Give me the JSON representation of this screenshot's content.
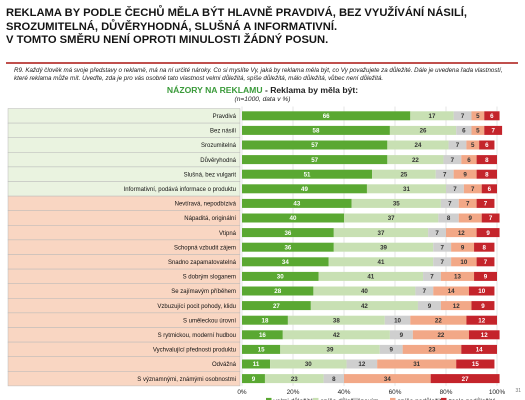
{
  "title_lines": [
    "REKLAMA BY PODLE ČECHŮ MĚLA BÝT HLAVNĚ PRAVDIVÁ, BEZ VYUŽÍVÁNÍ NÁSILÍ,",
    "SROZUMITELNÁ, DŮVĚRYHODNÁ, SLUŠNÁ A INFORMATIVNÍ.",
    "V TOMTO SMĚRU NENÍ OPROTI MINULOSTI ŽÁDNÝ POSUN."
  ],
  "question": "R9. Každý člověk má svoje představy o reklamě, má na ní určité nároky. Co si myslíte Vy, jaká by reklama měla být, co Vy považujete za důležité. Dále je uvedena řada vlastností, které reklama může mít. Uveďte, zda je pro vás osobně tato vlastnost velmi důležitá, spíše důležitá, málo důležitá, vůbec není důležitá.",
  "subtitle_accent": "NÁZORY NA REKLAMU",
  "subtitle_rest": " - Reklama by měla být:",
  "subtitle_note": "(n=1000, data v %)",
  "page_number": "31",
  "colors": {
    "very": "#5aa832",
    "rather": "#c8e0b3",
    "dunno": "#cfcfcf",
    "rather_not": "#f2a887",
    "not": "#c4242b",
    "label_green": "#eaf3e0",
    "label_orange": "#f9d6c2",
    "label_border": "#b9b9b9"
  },
  "chart_data": {
    "type": "bar",
    "orientation": "horizontal",
    "stacked": true,
    "xlim": [
      0,
      100
    ],
    "x_ticks": [
      "0%",
      "20%",
      "40%",
      "60%",
      "80%",
      "100%"
    ],
    "categories": [
      "Pravdivá",
      "Bez násilí",
      "Srozumitelná",
      "Důvěryhodná",
      "Slušná, bez vulgarit",
      "Informativní, podává informace o produktu",
      "Nevtíravá, nepodbízivá",
      "Nápaditá, originální",
      "Vtipná",
      "Schopná vzbudit zájem",
      "Snadno zapamatovatelná",
      "S dobrým sloganem",
      "Se zajímavým příběhem",
      "Vzbuzující pocit pohody, klidu",
      "S uměleckou úrovní",
      "S rytmickou, moderní hudbou",
      "Vychvalující přednosti produktu",
      "Odvážná",
      "S významnými, známými osobnostmi"
    ],
    "label_group": [
      "green",
      "green",
      "green",
      "green",
      "green",
      "green",
      "orange",
      "orange",
      "orange",
      "orange",
      "orange",
      "orange",
      "orange",
      "orange",
      "orange",
      "orange",
      "orange",
      "orange",
      "orange"
    ],
    "series": [
      {
        "name": "velmi důležitá",
        "values": [
          66,
          58,
          57,
          57,
          51,
          49,
          43,
          40,
          36,
          36,
          34,
          30,
          28,
          27,
          18,
          16,
          15,
          11,
          9
        ]
      },
      {
        "name": "spíše důležitá",
        "values": [
          17,
          26,
          24,
          22,
          25,
          31,
          35,
          37,
          37,
          39,
          41,
          41,
          40,
          42,
          38,
          42,
          39,
          30,
          23
        ]
      },
      {
        "name": "nevím",
        "values": [
          7,
          6,
          7,
          7,
          7,
          7,
          7,
          8,
          7,
          7,
          7,
          7,
          7,
          9,
          10,
          9,
          9,
          12,
          8
        ]
      },
      {
        "name": "spíše nedůležitá",
        "values": [
          5,
          5,
          5,
          6,
          9,
          7,
          7,
          9,
          12,
          9,
          10,
          13,
          14,
          12,
          22,
          22,
          23,
          31,
          34
        ]
      },
      {
        "name": "zcela nedůležitá",
        "values": [
          6,
          7,
          6,
          8,
          8,
          6,
          7,
          7,
          9,
          8,
          7,
          9,
          10,
          9,
          12,
          12,
          14,
          15,
          27
        ]
      }
    ]
  }
}
